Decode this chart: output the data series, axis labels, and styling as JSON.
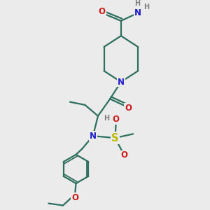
{
  "bg_color": "#ebebeb",
  "bond_color": "#2d6e5e",
  "bond_width": 1.6,
  "atom_colors": {
    "C": "#2d6e5e",
    "N": "#1a1acc",
    "O": "#cc1a1a",
    "S": "#bbbb00",
    "H": "#808080"
  },
  "font_size": 8.5,
  "fig_size": [
    3.0,
    3.0
  ],
  "dpi": 100,
  "xlim": [
    0,
    10
  ],
  "ylim": [
    0,
    10
  ]
}
